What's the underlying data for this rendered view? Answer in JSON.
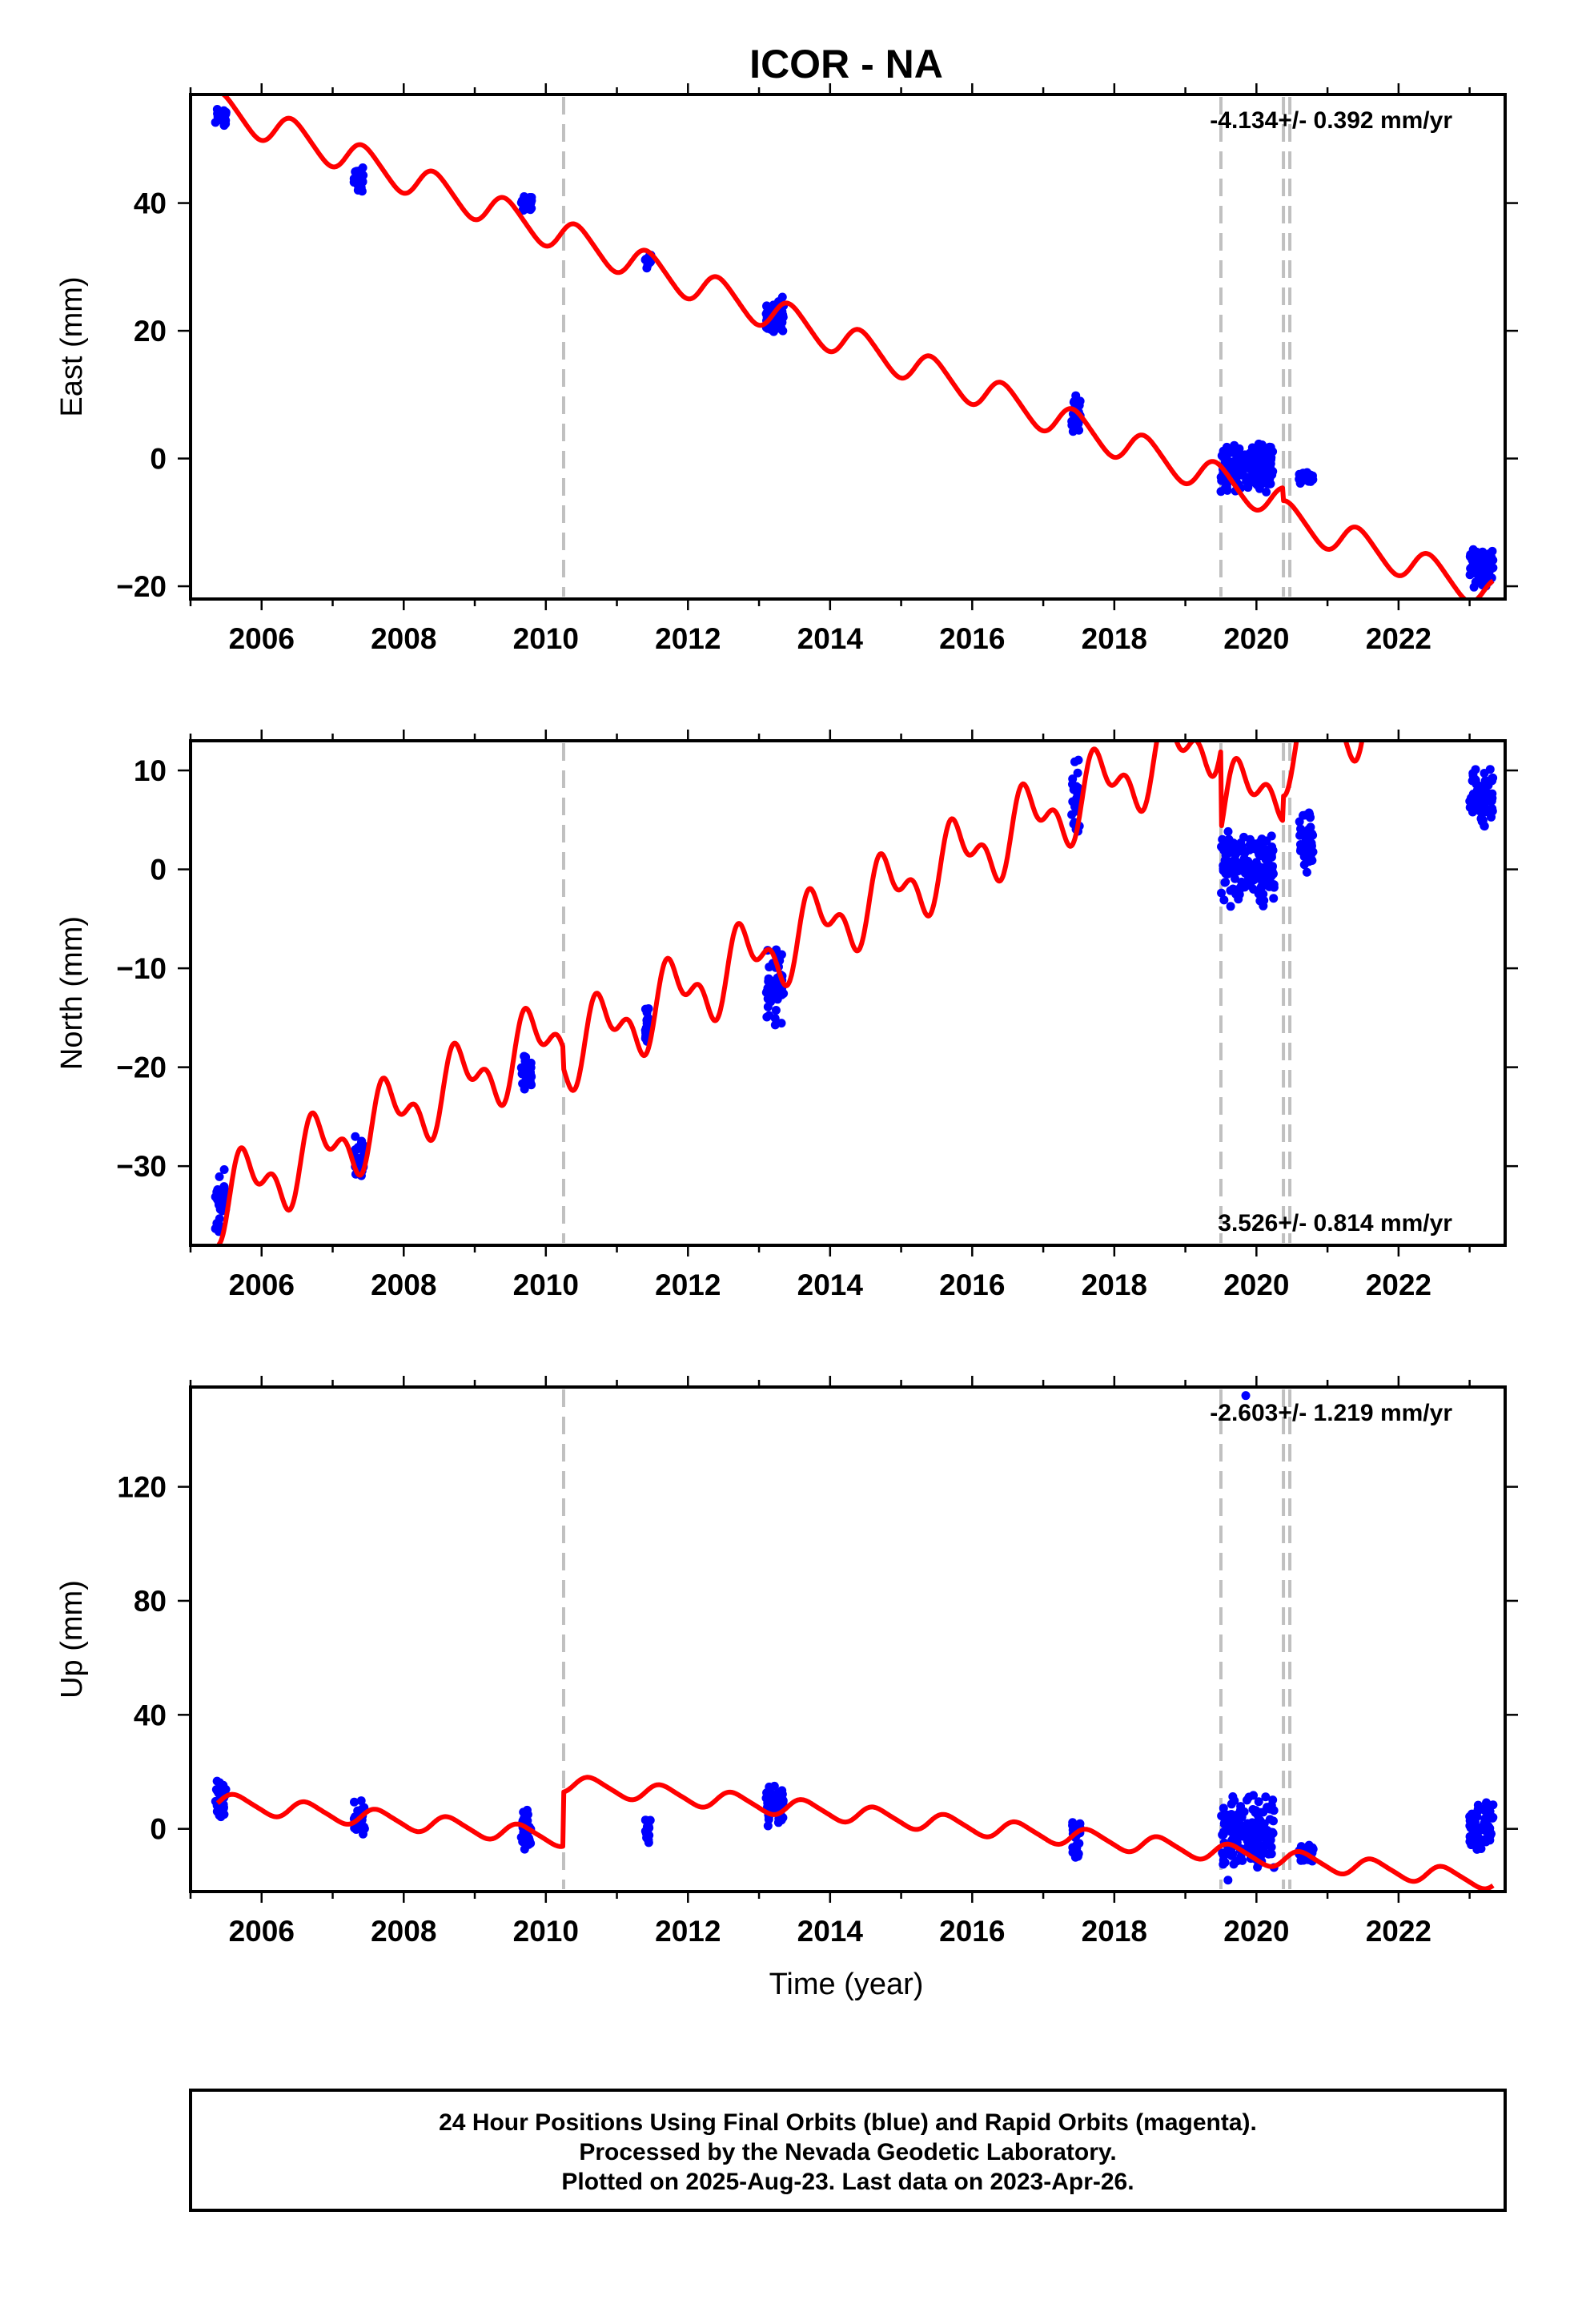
{
  "title": "ICOR - NA",
  "x_axis_label": "Time (year)",
  "caption": {
    "line1": "24 Hour Positions Using Final Orbits (blue) and Rapid Orbits (magenta).",
    "line2": "Processed by the Nevada Geodetic Laboratory.",
    "line3": "Plotted on 2025-Aug-23. Last data on 2023-Apr-26."
  },
  "colors": {
    "data_points": "#0000ff",
    "model_line": "#ff0000",
    "event_lines": "#c0c0c0",
    "frame": "#000000"
  },
  "chart_data": [
    {
      "type": "scatter",
      "component": "east",
      "ylabel": "East (mm)",
      "xlim": [
        2005.0,
        2023.5
      ],
      "ylim": [
        -22,
        57
      ],
      "yticks": [
        -20,
        0,
        20,
        40
      ],
      "xticks": [
        2006,
        2008,
        2010,
        2012,
        2014,
        2016,
        2018,
        2020,
        2022
      ],
      "rate_label": "-4.134+/- 0.392 mm/yr",
      "rate_position": "top-right",
      "event_lines": [
        2010.25,
        2019.5,
        2020.38,
        2020.47
      ],
      "model": {
        "name": "model fit",
        "rate": -4.134,
        "intercept_year": 2005.0,
        "intercept": 56.5,
        "annual_amplitude": 2.5,
        "annual_phase": 0.2,
        "semiannual_amplitude": 0.3,
        "offsets": [
          {
            "year": 2010.25,
            "value": 0
          },
          {
            "year": 2019.5,
            "value": 0
          },
          {
            "year": 2020.38,
            "value": -2
          },
          {
            "year": 2020.47,
            "value": 0
          }
        ]
      },
      "clusters": [
        {
          "t0": 2005.35,
          "t1": 2005.5,
          "y0": 51.5,
          "y1": 55.5
        },
        {
          "t0": 2007.3,
          "t1": 2007.45,
          "y0": 41.5,
          "y1": 46.0
        },
        {
          "t0": 2009.65,
          "t1": 2009.8,
          "y0": 38.5,
          "y1": 41.5
        },
        {
          "t0": 2011.4,
          "t1": 2011.48,
          "y0": 29.5,
          "y1": 32.5
        },
        {
          "t0": 2013.1,
          "t1": 2013.35,
          "y0": 19.5,
          "y1": 25.5
        },
        {
          "t0": 2017.4,
          "t1": 2017.52,
          "y0": 3.0,
          "y1": 10.0
        },
        {
          "t0": 2019.5,
          "t1": 2020.25,
          "y0": -5.5,
          "y1": 3.0
        },
        {
          "t0": 2020.6,
          "t1": 2020.8,
          "y0": -4.0,
          "y1": -2.0
        },
        {
          "t0": 2023.0,
          "t1": 2023.33,
          "y0": -20.5,
          "y1": -13.5
        }
      ]
    },
    {
      "type": "scatter",
      "component": "north",
      "ylabel": "North (mm)",
      "xlim": [
        2005.0,
        2023.5
      ],
      "ylim": [
        -38,
        13
      ],
      "yticks": [
        -30,
        -20,
        -10,
        0,
        10
      ],
      "xticks": [
        2006,
        2008,
        2010,
        2012,
        2014,
        2016,
        2018,
        2020,
        2022
      ],
      "rate_label": "3.526+/- 0.814 mm/yr",
      "rate_position": "bottom-right",
      "event_lines": [
        2010.25,
        2019.5,
        2020.38,
        2020.47
      ],
      "model": {
        "name": "model fit",
        "rate": 3.526,
        "intercept_year": 2005.0,
        "intercept": -35.0,
        "annual_amplitude": 3.0,
        "annual_phase": 0.55,
        "semiannual_amplitude": 2.0,
        "offsets": [
          {
            "year": 2010.25,
            "value": -2.0
          },
          {
            "year": 2019.5,
            "value": -8.0
          },
          {
            "year": 2020.38,
            "value": 2.5
          },
          {
            "year": 2020.47,
            "value": 0
          }
        ]
      },
      "clusters": [
        {
          "t0": 2005.35,
          "t1": 2005.5,
          "y0": -37.0,
          "y1": -30.0
        },
        {
          "t0": 2007.3,
          "t1": 2007.45,
          "y0": -31.5,
          "y1": -26.5
        },
        {
          "t0": 2009.65,
          "t1": 2009.8,
          "y0": -22.5,
          "y1": -18.5
        },
        {
          "t0": 2011.4,
          "t1": 2011.48,
          "y0": -18.0,
          "y1": -13.5
        },
        {
          "t0": 2013.1,
          "t1": 2013.35,
          "y0": -16.0,
          "y1": -7.5
        },
        {
          "t0": 2017.4,
          "t1": 2017.52,
          "y0": 3.0,
          "y1": 12.0
        },
        {
          "t0": 2019.5,
          "t1": 2020.25,
          "y0": -4.0,
          "y1": 4.0
        },
        {
          "t0": 2020.6,
          "t1": 2020.8,
          "y0": -1.0,
          "y1": 6.0
        },
        {
          "t0": 2023.0,
          "t1": 2023.33,
          "y0": 4.0,
          "y1": 10.5
        }
      ]
    },
    {
      "type": "scatter",
      "component": "up",
      "ylabel": "Up (mm)",
      "xlim": [
        2005.0,
        2023.5
      ],
      "ylim": [
        -22,
        155
      ],
      "yticks": [
        0,
        40,
        80,
        120
      ],
      "xticks": [
        2006,
        2008,
        2010,
        2012,
        2014,
        2016,
        2018,
        2020,
        2022
      ],
      "rate_label": "-2.603+/- 1.219 mm/yr",
      "rate_position": "top-right",
      "event_lines": [
        2010.25,
        2019.5,
        2020.38,
        2020.47
      ],
      "model": {
        "name": "model fit",
        "rate": -2.603,
        "intercept_year": 2005.0,
        "intercept": 10.5,
        "annual_amplitude": 3.0,
        "annual_phase": 0.4,
        "semiannual_amplitude": 0.5,
        "offsets": [
          {
            "year": 2010.25,
            "value": 19.0
          },
          {
            "year": 2019.5,
            "value": 0
          },
          {
            "year": 2020.38,
            "value": 0
          },
          {
            "year": 2020.47,
            "value": 0
          }
        ]
      },
      "clusters": [
        {
          "t0": 2005.35,
          "t1": 2005.5,
          "y0": 2.0,
          "y1": 19.0
        },
        {
          "t0": 2007.3,
          "t1": 2007.45,
          "y0": -3.0,
          "y1": 11.0
        },
        {
          "t0": 2009.65,
          "t1": 2009.8,
          "y0": -9.0,
          "y1": 8.0
        },
        {
          "t0": 2011.4,
          "t1": 2011.48,
          "y0": -6.0,
          "y1": 5.0
        },
        {
          "t0": 2013.1,
          "t1": 2013.35,
          "y0": 0.0,
          "y1": 16.0
        },
        {
          "t0": 2017.4,
          "t1": 2017.52,
          "y0": -12.0,
          "y1": 5.0
        },
        {
          "t0": 2019.5,
          "t1": 2020.25,
          "y0": -15.0,
          "y1": 13.0
        },
        {
          "t0": 2020.6,
          "t1": 2020.8,
          "y0": -12.0,
          "y1": -5.0
        },
        {
          "t0": 2023.0,
          "t1": 2023.33,
          "y0": -9.0,
          "y1": 11.0
        }
      ],
      "outliers": [
        {
          "x": 2019.85,
          "y": 152
        },
        {
          "x": 2019.6,
          "y": -18
        }
      ]
    }
  ]
}
